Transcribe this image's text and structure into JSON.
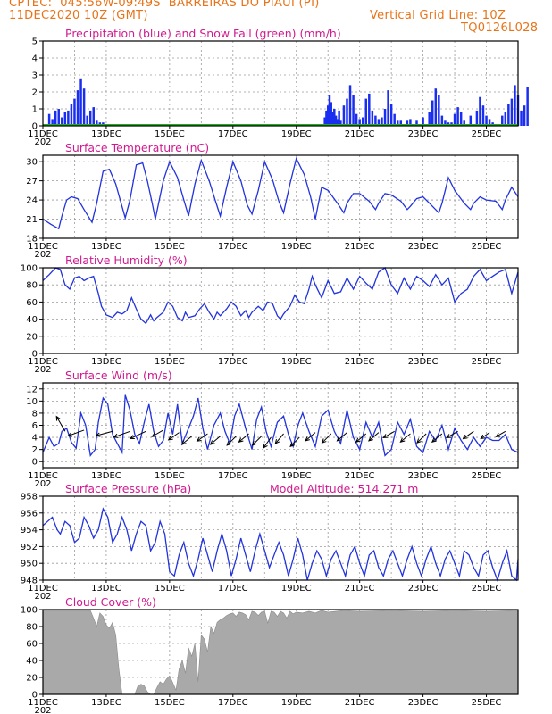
{
  "header": {
    "line1_left": "CPTEC:  045:56W-09:49S  BARREIRAS DO PIAUI (PI)",
    "line2_left": "11DEC2020 10Z (GMT)",
    "line2_right": "Vertical Grid Line: 10Z",
    "line3_right": "TQ0126L028"
  },
  "colors": {
    "title": "#d11a8f",
    "header": "#e8741a",
    "line": "#2233dd",
    "snow": "#22aa22",
    "cloud": "#a9a9a9"
  },
  "chart_data": [
    {
      "id": "precip",
      "type": "bar",
      "title": "Precipitation (blue) and Snow Fall (green) (mm/h)",
      "ylim": [
        0,
        5
      ],
      "yticks": [
        0,
        1,
        2,
        3,
        4,
        5
      ],
      "x": [
        0.2,
        0.3,
        0.4,
        0.5,
        0.6,
        0.7,
        0.8,
        0.9,
        1.0,
        1.1,
        1.2,
        1.3,
        1.4,
        1.5,
        1.6,
        1.7,
        1.8,
        1.9,
        8.9,
        8.95,
        9.0,
        9.05,
        9.1,
        9.15,
        9.2,
        9.25,
        9.3,
        9.35,
        9.4,
        9.5,
        9.6,
        9.7,
        9.8,
        9.9,
        10.0,
        10.1,
        10.2,
        10.3,
        10.4,
        10.5,
        10.6,
        10.7,
        10.8,
        10.9,
        11.0,
        11.1,
        11.2,
        11.3,
        11.5,
        11.6,
        11.8,
        12.0,
        12.2,
        12.3,
        12.4,
        12.5,
        12.6,
        12.7,
        12.8,
        12.9,
        13.0,
        13.1,
        13.2,
        13.3,
        13.5,
        13.7,
        13.8,
        13.9,
        14.0,
        14.1,
        14.2,
        14.5,
        14.6,
        14.7,
        14.8,
        14.9,
        15.0,
        15.1,
        15.2,
        15.3
      ],
      "values": [
        0.7,
        0.4,
        0.9,
        1.0,
        0.5,
        0.8,
        0.9,
        1.3,
        1.6,
        2.1,
        2.8,
        2.2,
        0.6,
        0.9,
        1.1,
        0.3,
        0.2,
        0.2,
        0.5,
        0.9,
        1.2,
        1.8,
        1.4,
        0.8,
        1.0,
        0.6,
        0.4,
        0.9,
        0.3,
        1.2,
        1.6,
        2.4,
        1.8,
        0.7,
        0.4,
        0.5,
        1.6,
        1.9,
        0.9,
        0.6,
        0.4,
        0.5,
        1.0,
        2.1,
        1.3,
        0.7,
        0.3,
        0.3,
        0.3,
        0.4,
        0.3,
        0.5,
        0.8,
        1.5,
        2.2,
        1.8,
        0.6,
        0.3,
        0.2,
        0.2,
        0.7,
        1.1,
        0.8,
        0.3,
        0.6,
        0.9,
        1.7,
        1.2,
        0.6,
        0.4,
        0.2,
        0.6,
        0.8,
        1.3,
        1.6,
        2.4,
        1.8,
        0.9,
        1.2,
        2.3
      ],
      "snow": 0
    },
    {
      "id": "temp",
      "type": "line",
      "title": "Surface Temperature (nC)",
      "ylim": [
        18,
        31
      ],
      "yticks": [
        18,
        21,
        24,
        27,
        30
      ],
      "x": [
        0,
        0.25,
        0.5,
        0.6,
        0.75,
        0.9,
        1.1,
        1.3,
        1.55,
        1.7,
        1.9,
        2.1,
        2.3,
        2.6,
        2.75,
        2.95,
        3.15,
        3.3,
        3.45,
        3.55,
        3.8,
        4.0,
        4.25,
        4.45,
        4.6,
        4.8,
        5.0,
        5.25,
        5.45,
        5.6,
        5.8,
        6.0,
        6.25,
        6.45,
        6.6,
        6.8,
        7.0,
        7.25,
        7.45,
        7.6,
        7.8,
        8.0,
        8.25,
        8.45,
        8.6,
        8.8,
        9.0,
        9.3,
        9.5,
        9.6,
        9.8,
        10.0,
        10.3,
        10.5,
        10.6,
        10.8,
        11.0,
        11.3,
        11.5,
        11.6,
        11.8,
        12.0,
        12.3,
        12.5,
        12.6,
        12.8,
        13.0,
        13.3,
        13.5,
        13.6,
        13.8,
        14.0,
        14.3,
        14.5,
        14.6,
        14.8,
        15.0
      ],
      "values": [
        21,
        20.2,
        19.5,
        21.5,
        24.0,
        24.5,
        24.2,
        22.5,
        20.5,
        23.5,
        28.5,
        28.8,
        26.5,
        21.2,
        24.0,
        29.5,
        29.8,
        27.0,
        23.5,
        21.0,
        27.0,
        30.0,
        27.5,
        24.0,
        21.5,
        26.5,
        30.2,
        27.0,
        23.8,
        21.5,
        26.0,
        30.0,
        27.0,
        23.2,
        21.8,
        25.5,
        30.0,
        27.2,
        23.8,
        22.0,
        26.5,
        30.5,
        28.0,
        24.5,
        21.0,
        26.0,
        25.5,
        23.5,
        22.0,
        23.5,
        25.0,
        25.0,
        23.8,
        22.5,
        23.5,
        25.0,
        24.8,
        23.8,
        22.5,
        23.0,
        24.2,
        24.5,
        23.0,
        22.0,
        23.5,
        27.5,
        25.5,
        23.5,
        22.5,
        23.5,
        24.5,
        24.0,
        23.8,
        22.5,
        24.0,
        26.0,
        24.5
      ]
    },
    {
      "id": "rh",
      "type": "line",
      "title": "Relative Humidity (%)",
      "ylim": [
        0,
        100
      ],
      "yticks": [
        0,
        20,
        40,
        60,
        80,
        100
      ],
      "x": [
        0,
        0.2,
        0.4,
        0.55,
        0.7,
        0.85,
        1.0,
        1.15,
        1.3,
        1.45,
        1.6,
        1.75,
        1.85,
        2.0,
        2.2,
        2.35,
        2.5,
        2.65,
        2.8,
        2.95,
        3.1,
        3.25,
        3.4,
        3.5,
        3.6,
        3.8,
        3.95,
        4.1,
        4.25,
        4.4,
        4.5,
        4.6,
        4.8,
        4.95,
        5.1,
        5.25,
        5.4,
        5.5,
        5.6,
        5.8,
        5.95,
        6.1,
        6.25,
        6.4,
        6.5,
        6.6,
        6.8,
        6.95,
        7.1,
        7.25,
        7.4,
        7.5,
        7.6,
        7.8,
        7.95,
        8.1,
        8.25,
        8.4,
        8.5,
        8.6,
        8.8,
        9.0,
        9.2,
        9.4,
        9.6,
        9.8,
        10.0,
        10.2,
        10.4,
        10.6,
        10.8,
        11.0,
        11.2,
        11.4,
        11.6,
        11.8,
        12.0,
        12.2,
        12.4,
        12.6,
        12.8,
        13.0,
        13.2,
        13.4,
        13.6,
        13.8,
        14.0,
        14.2,
        14.4,
        14.6,
        14.8,
        15.0
      ],
      "values": [
        85,
        92,
        100,
        98,
        80,
        75,
        88,
        90,
        85,
        88,
        90,
        70,
        55,
        45,
        42,
        48,
        46,
        50,
        65,
        52,
        40,
        35,
        45,
        38,
        42,
        48,
        60,
        55,
        42,
        38,
        48,
        42,
        44,
        52,
        58,
        48,
        40,
        48,
        44,
        52,
        60,
        55,
        44,
        50,
        42,
        48,
        55,
        50,
        60,
        58,
        44,
        40,
        46,
        55,
        68,
        60,
        58,
        75,
        90,
        80,
        65,
        85,
        70,
        72,
        88,
        75,
        90,
        82,
        75,
        95,
        100,
        80,
        70,
        88,
        75,
        90,
        85,
        78,
        92,
        80,
        88,
        60,
        70,
        75,
        90,
        98,
        85,
        90,
        95,
        98,
        70,
        95
      ]
    },
    {
      "id": "wind",
      "type": "line",
      "title": "Surface Wind (m/s)",
      "ylim": [
        -1,
        13
      ],
      "yticks": [
        0,
        2,
        4,
        6,
        8,
        10,
        12
      ],
      "x": [
        0,
        0.2,
        0.35,
        0.5,
        0.6,
        0.75,
        0.9,
        1.05,
        1.2,
        1.35,
        1.5,
        1.65,
        1.75,
        1.9,
        2.05,
        2.2,
        2.35,
        2.5,
        2.6,
        2.75,
        2.9,
        3.05,
        3.2,
        3.35,
        3.5,
        3.65,
        3.8,
        3.95,
        4.1,
        4.25,
        4.4,
        4.6,
        4.75,
        4.9,
        5.05,
        5.2,
        5.4,
        5.6,
        5.75,
        5.9,
        6.05,
        6.2,
        6.4,
        6.6,
        6.75,
        6.9,
        7.05,
        7.2,
        7.4,
        7.6,
        7.75,
        7.9,
        8.05,
        8.2,
        8.4,
        8.6,
        8.8,
        9.0,
        9.2,
        9.4,
        9.6,
        9.8,
        10.0,
        10.2,
        10.4,
        10.6,
        10.8,
        11.0,
        11.2,
        11.4,
        11.6,
        11.8,
        12.0,
        12.2,
        12.4,
        12.6,
        12.8,
        13.0,
        13.2,
        13.4,
        13.6,
        13.8,
        14.0,
        14.2,
        14.4,
        14.6,
        14.8,
        15.0
      ],
      "values": [
        1.5,
        4.0,
        2.5,
        3.0,
        5.0,
        5.5,
        3.2,
        2.2,
        8.0,
        6.0,
        1.0,
        2.0,
        6.5,
        10.5,
        9.5,
        4.5,
        3.0,
        1.5,
        11.0,
        8.5,
        4.5,
        3.0,
        6.5,
        9.5,
        5.0,
        2.5,
        3.5,
        8.0,
        4.5,
        9.5,
        3.0,
        5.5,
        7.5,
        10.5,
        5.5,
        2.0,
        6.0,
        8.0,
        5.0,
        3.0,
        7.5,
        9.5,
        5.5,
        2.0,
        7.0,
        9.0,
        5.0,
        2.5,
        6.5,
        7.5,
        4.5,
        2.5,
        6.0,
        8.0,
        5.0,
        2.5,
        7.5,
        8.5,
        5.0,
        3.0,
        8.5,
        4.0,
        2.0,
        6.5,
        4.0,
        6.5,
        1.0,
        2.0,
        6.5,
        4.5,
        7.0,
        2.5,
        1.5,
        5.0,
        3.5,
        6.0,
        2.0,
        5.5,
        3.5,
        2.0,
        4.0,
        2.5,
        4.0,
        3.5,
        3.5,
        4.5,
        2.0,
        1.5
      ],
      "barbs": [
        {
          "x": 0.7,
          "y": 5.0,
          "dir": 330,
          "len": 4.0
        },
        {
          "x": 1.3,
          "y": 5.2,
          "dir": 250,
          "len": 4.0
        },
        {
          "x": 2.2,
          "y": 5.0,
          "dir": 255,
          "len": 4.0
        },
        {
          "x": 2.75,
          "y": 5.0,
          "dir": 250,
          "len": 4.0
        },
        {
          "x": 3.25,
          "y": 5.0,
          "dir": 245,
          "len": 4.0
        },
        {
          "x": 3.8,
          "y": 5.2,
          "dir": 240,
          "len": 3.0
        },
        {
          "x": 4.3,
          "y": 4.8,
          "dir": 235,
          "len": 3.0
        },
        {
          "x": 4.7,
          "y": 4.2,
          "dir": 230,
          "len": 3.0
        },
        {
          "x": 5.2,
          "y": 4.6,
          "dir": 235,
          "len": 3.0
        },
        {
          "x": 5.6,
          "y": 4.2,
          "dir": 230,
          "len": 3.0
        },
        {
          "x": 6.1,
          "y": 4.2,
          "dir": 225,
          "len": 3.0
        },
        {
          "x": 6.5,
          "y": 4.6,
          "dir": 230,
          "len": 3.0
        },
        {
          "x": 6.9,
          "y": 4.2,
          "dir": 225,
          "len": 3.0
        },
        {
          "x": 7.2,
          "y": 4.0,
          "dir": 215,
          "len": 3.0
        },
        {
          "x": 7.6,
          "y": 4.6,
          "dir": 220,
          "len": 3.0
        },
        {
          "x": 8.1,
          "y": 4.0,
          "dir": 225,
          "len": 3.0
        },
        {
          "x": 8.6,
          "y": 4.8,
          "dir": 230,
          "len": 3.0
        },
        {
          "x": 9.1,
          "y": 4.6,
          "dir": 225,
          "len": 3.0
        },
        {
          "x": 9.6,
          "y": 4.8,
          "dir": 230,
          "len": 3.0
        },
        {
          "x": 10.2,
          "y": 4.6,
          "dir": 230,
          "len": 3.0
        },
        {
          "x": 10.6,
          "y": 4.8,
          "dir": 230,
          "len": 3.0
        },
        {
          "x": 11.1,
          "y": 5.0,
          "dir": 240,
          "len": 3.0
        },
        {
          "x": 11.6,
          "y": 4.6,
          "dir": 230,
          "len": 3.0
        },
        {
          "x": 12.1,
          "y": 4.6,
          "dir": 225,
          "len": 3.0
        },
        {
          "x": 12.6,
          "y": 4.6,
          "dir": 230,
          "len": 3.0
        },
        {
          "x": 13.1,
          "y": 5.0,
          "dir": 240,
          "len": 3.0
        },
        {
          "x": 13.6,
          "y": 5.0,
          "dir": 235,
          "len": 3.0
        },
        {
          "x": 14.1,
          "y": 4.8,
          "dir": 235,
          "len": 2.5
        },
        {
          "x": 14.6,
          "y": 5.0,
          "dir": 240,
          "len": 2.5
        }
      ]
    },
    {
      "id": "pres",
      "type": "line",
      "title": "Surface Pressure (hPa)",
      "annotation": "Model Altitude: 514.271 m",
      "ylim": [
        948,
        958
      ],
      "yticks": [
        948,
        950,
        952,
        954,
        956,
        958
      ],
      "x": [
        0,
        0.15,
        0.3,
        0.45,
        0.55,
        0.7,
        0.85,
        1.0,
        1.15,
        1.3,
        1.45,
        1.6,
        1.75,
        1.9,
        2.05,
        2.2,
        2.35,
        2.5,
        2.65,
        2.8,
        2.95,
        3.1,
        3.25,
        3.4,
        3.55,
        3.7,
        3.85,
        4.0,
        4.15,
        4.3,
        4.45,
        4.6,
        4.75,
        4.9,
        5.05,
        5.2,
        5.35,
        5.5,
        5.65,
        5.8,
        5.95,
        6.1,
        6.25,
        6.4,
        6.55,
        6.7,
        6.85,
        7.0,
        7.15,
        7.3,
        7.45,
        7.6,
        7.75,
        7.9,
        8.05,
        8.2,
        8.35,
        8.5,
        8.65,
        8.8,
        8.95,
        9.1,
        9.25,
        9.4,
        9.55,
        9.7,
        9.85,
        10.0,
        10.15,
        10.3,
        10.45,
        10.6,
        10.75,
        10.9,
        11.05,
        11.2,
        11.35,
        11.5,
        11.65,
        11.8,
        11.95,
        12.1,
        12.25,
        12.4,
        12.55,
        12.7,
        12.85,
        13.0,
        13.15,
        13.3,
        13.45,
        13.6,
        13.75,
        13.9,
        14.05,
        14.2,
        14.35,
        14.5,
        14.65,
        14.8,
        14.95,
        15.0
      ],
      "values": [
        954.5,
        955.0,
        955.5,
        954.0,
        953.5,
        955.0,
        954.5,
        952.5,
        953.0,
        955.5,
        954.5,
        953.0,
        954.0,
        956.5,
        955.5,
        952.5,
        953.5,
        955.5,
        954.0,
        951.5,
        953.5,
        955.0,
        954.5,
        951.5,
        952.5,
        955.0,
        953.5,
        949.0,
        948.5,
        951.0,
        952.5,
        950.0,
        948.5,
        950.5,
        953.0,
        951.0,
        949.0,
        951.5,
        953.5,
        951.5,
        948.5,
        950.5,
        953.0,
        951.0,
        949.0,
        951.5,
        953.5,
        951.5,
        949.5,
        951.0,
        952.5,
        951.0,
        948.5,
        950.5,
        953.0,
        951.0,
        948.0,
        950.0,
        951.5,
        950.5,
        948.5,
        950.5,
        951.5,
        950.0,
        948.5,
        951.0,
        952.0,
        950.0,
        948.5,
        951.0,
        951.5,
        949.5,
        948.5,
        950.5,
        951.5,
        950.0,
        948.5,
        950.5,
        952.0,
        950.0,
        948.5,
        950.5,
        952.0,
        950.0,
        948.5,
        950.5,
        951.5,
        950.0,
        948.5,
        951.5,
        951.0,
        949.5,
        948.5,
        951.0,
        951.5,
        949.5,
        948.0,
        950.0,
        951.5,
        948.5,
        948.0,
        950.5
      ]
    },
    {
      "id": "cloud",
      "type": "area",
      "title": "Cloud Cover (%)",
      "ylim": [
        0,
        100
      ],
      "yticks": [
        0,
        20,
        40,
        60,
        80,
        100
      ],
      "x": [
        0,
        1.5,
        1.6,
        1.7,
        1.8,
        1.9,
        2.0,
        2.1,
        2.2,
        2.3,
        2.4,
        2.5,
        2.6,
        2.7,
        2.8,
        2.9,
        3.0,
        3.1,
        3.2,
        3.3,
        3.4,
        3.5,
        3.6,
        3.7,
        3.8,
        3.9,
        4.0,
        4.1,
        4.2,
        4.3,
        4.4,
        4.5,
        4.6,
        4.7,
        4.8,
        4.9,
        5.0,
        5.1,
        5.2,
        5.3,
        5.4,
        5.5,
        5.6,
        5.7,
        5.8,
        5.9,
        6.0,
        6.1,
        6.2,
        6.3,
        6.4,
        6.5,
        6.6,
        6.7,
        6.8,
        6.9,
        7.0,
        7.1,
        7.2,
        7.3,
        7.4,
        7.5,
        7.6,
        7.7,
        7.8,
        7.9,
        8.0,
        8.2,
        8.4,
        8.6,
        8.8,
        9.0,
        9.5,
        10.0,
        11.0,
        12.0,
        13.0,
        14.0,
        15.0
      ],
      "values": [
        99,
        99,
        90,
        80,
        96,
        92,
        82,
        78,
        85,
        70,
        30,
        0,
        0,
        0,
        0,
        0,
        10,
        12,
        10,
        3,
        0,
        0,
        8,
        15,
        12,
        18,
        22,
        14,
        5,
        30,
        40,
        25,
        55,
        45,
        60,
        15,
        70,
        65,
        50,
        80,
        72,
        85,
        88,
        90,
        93,
        95,
        96,
        92,
        97,
        96,
        94,
        88,
        98,
        97,
        93,
        97,
        98,
        84,
        98,
        97,
        92,
        98,
        96,
        90,
        98,
        95,
        97,
        96,
        98,
        96,
        99,
        97,
        99,
        98,
        99,
        98,
        99,
        98,
        99
      ]
    }
  ],
  "xticks": {
    "days": [
      "11DEC",
      "13DEC",
      "15DEC",
      "17DEC",
      "19DEC",
      "21DEC",
      "23DEC",
      "25DEC"
    ],
    "year_fragment": "202"
  }
}
